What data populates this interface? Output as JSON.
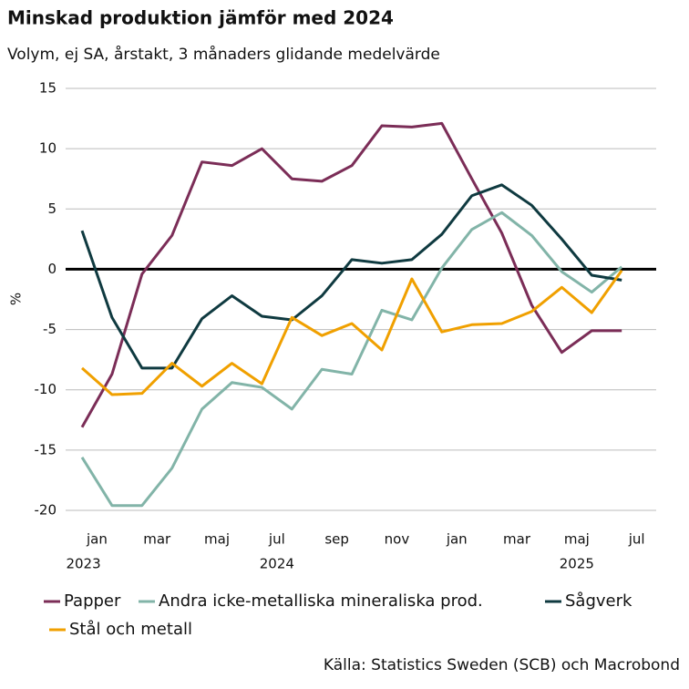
{
  "chart_data": {
    "type": "line",
    "title": "Minskad produktion jämför med 2024",
    "subtitle": "Volym, ej SA, årstakt, 3 månaders glidande medelvärde",
    "y_label": "%",
    "source": "Källa: Statistics Sweden (SCB) och Macrobond",
    "categories": [
      null,
      "jan",
      null,
      "mar",
      null,
      "maj",
      null,
      "jul",
      null,
      "sep",
      null,
      "nov",
      null,
      "jan",
      null,
      "mar",
      null,
      "maj",
      null,
      "jul"
    ],
    "years": [
      null,
      "2023",
      null,
      null,
      null,
      null,
      null,
      "2024",
      null,
      null,
      null,
      null,
      null,
      null,
      null,
      null,
      null,
      "2025",
      null,
      null
    ],
    "ylim": [
      -20,
      15
    ],
    "yticks": [
      -20,
      -15,
      -10,
      -5,
      0,
      5,
      10,
      15
    ],
    "grid": true,
    "series": [
      {
        "name": "Papper",
        "color": "#7b2d57",
        "values": [
          -13.1,
          -8.7,
          -0.4,
          2.8,
          8.9,
          8.6,
          10.0,
          7.5,
          7.3,
          8.6,
          11.9,
          11.8,
          12.1,
          7.5,
          3.0,
          -3.0,
          -6.9,
          -5.1,
          -5.1,
          null
        ]
      },
      {
        "name": "Andra icke-metalliska mineraliska prod.",
        "color": "#82b4a8",
        "values": [
          -15.6,
          -19.6,
          -19.6,
          -16.5,
          -11.6,
          -9.4,
          -9.8,
          -11.6,
          -8.3,
          -8.7,
          -3.4,
          -4.2,
          0.1,
          3.3,
          4.7,
          2.8,
          -0.2,
          -1.9,
          0.2,
          null
        ]
      },
      {
        "name": "Sågverk",
        "color": "#0f3a40",
        "values": [
          3.2,
          -4.0,
          -8.2,
          -8.2,
          -4.1,
          -2.2,
          -3.9,
          -4.2,
          -2.2,
          0.8,
          0.5,
          0.8,
          2.9,
          6.1,
          7.0,
          5.3,
          2.5,
          -0.5,
          -0.9,
          null
        ]
      },
      {
        "name": "Stål och metall",
        "color": "#f0a000",
        "values": [
          -8.2,
          -10.4,
          -10.3,
          -7.8,
          -9.7,
          -7.8,
          -9.5,
          -4.0,
          -5.5,
          -4.5,
          -6.7,
          -0.8,
          -5.2,
          -4.6,
          -4.5,
          -3.5,
          -1.5,
          -3.6,
          -0.1,
          null
        ]
      }
    ]
  }
}
